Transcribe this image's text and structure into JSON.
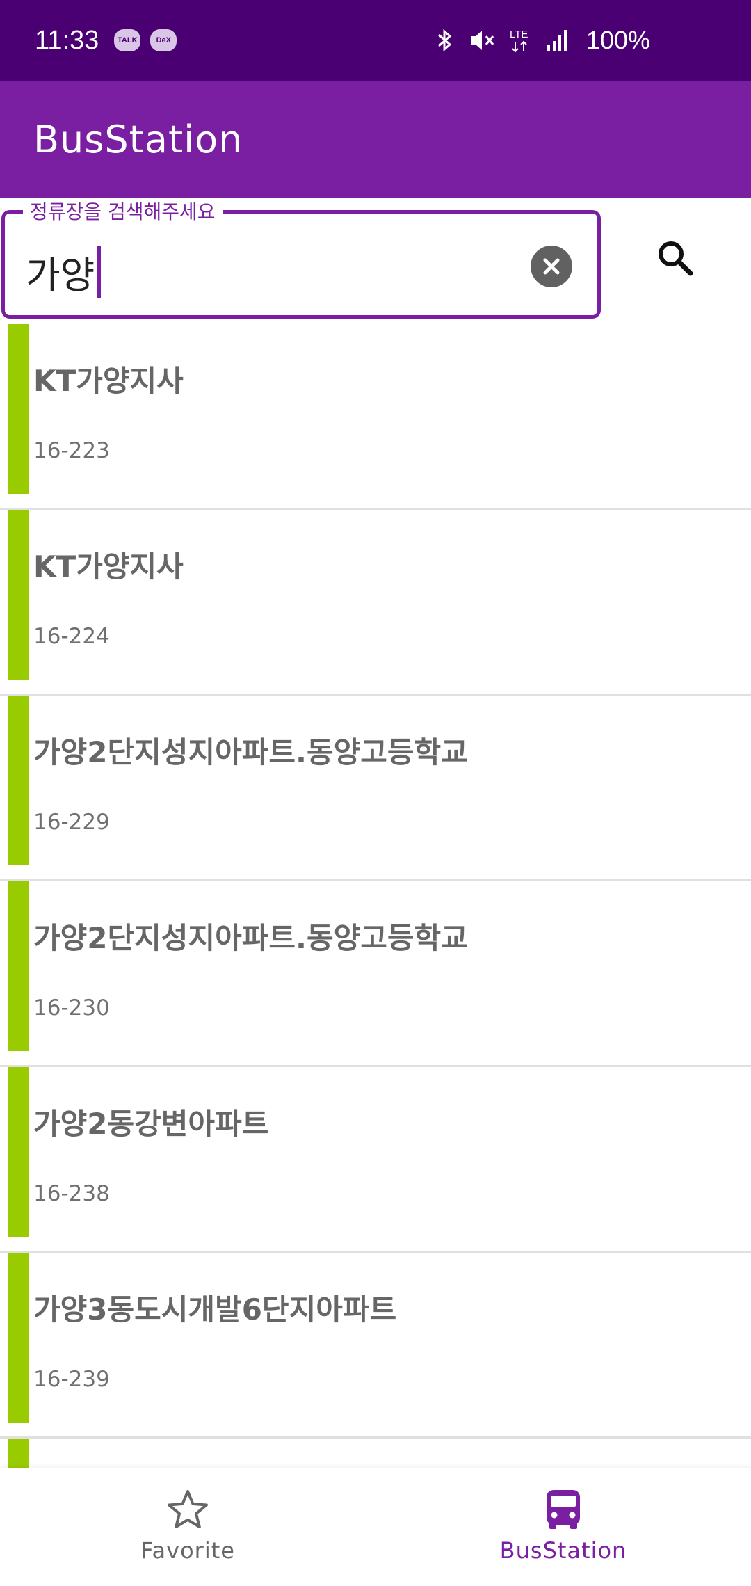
{
  "status_bar": {
    "time": "11:33",
    "app_icons": [
      "TALK",
      "DeX"
    ],
    "battery": "100%",
    "network": "LTE",
    "icons": [
      "bluetooth-icon",
      "mute-icon",
      "lte-icon",
      "signal-icon"
    ]
  },
  "app_bar": {
    "title": "BusStation"
  },
  "search": {
    "label": "정류장을 검색해주세요",
    "value": "가양",
    "clear_icon": "clear-icon",
    "search_icon": "search-icon"
  },
  "stations": [
    {
      "name": "KT가양지사",
      "id": "16-223"
    },
    {
      "name": "KT가양지사",
      "id": "16-224"
    },
    {
      "name": "가양2단지성지아파트.동양고등학교",
      "id": "16-229"
    },
    {
      "name": "가양2단지성지아파트.동양고등학교",
      "id": "16-230"
    },
    {
      "name": "가양2동강변아파트",
      "id": "16-238"
    },
    {
      "name": "가양3동도시개발6단지아파트",
      "id": "16-239"
    },
    {
      "name": "",
      "id": ""
    }
  ],
  "bottom_nav": {
    "items": [
      {
        "label": "Favorite",
        "icon": "star-icon",
        "active": false
      },
      {
        "label": "BusStation",
        "icon": "bus-icon",
        "active": true
      }
    ]
  },
  "colors": {
    "status_bar": "#4a0072",
    "primary": "#7b1fa2",
    "accent_bar": "#99cc00"
  }
}
